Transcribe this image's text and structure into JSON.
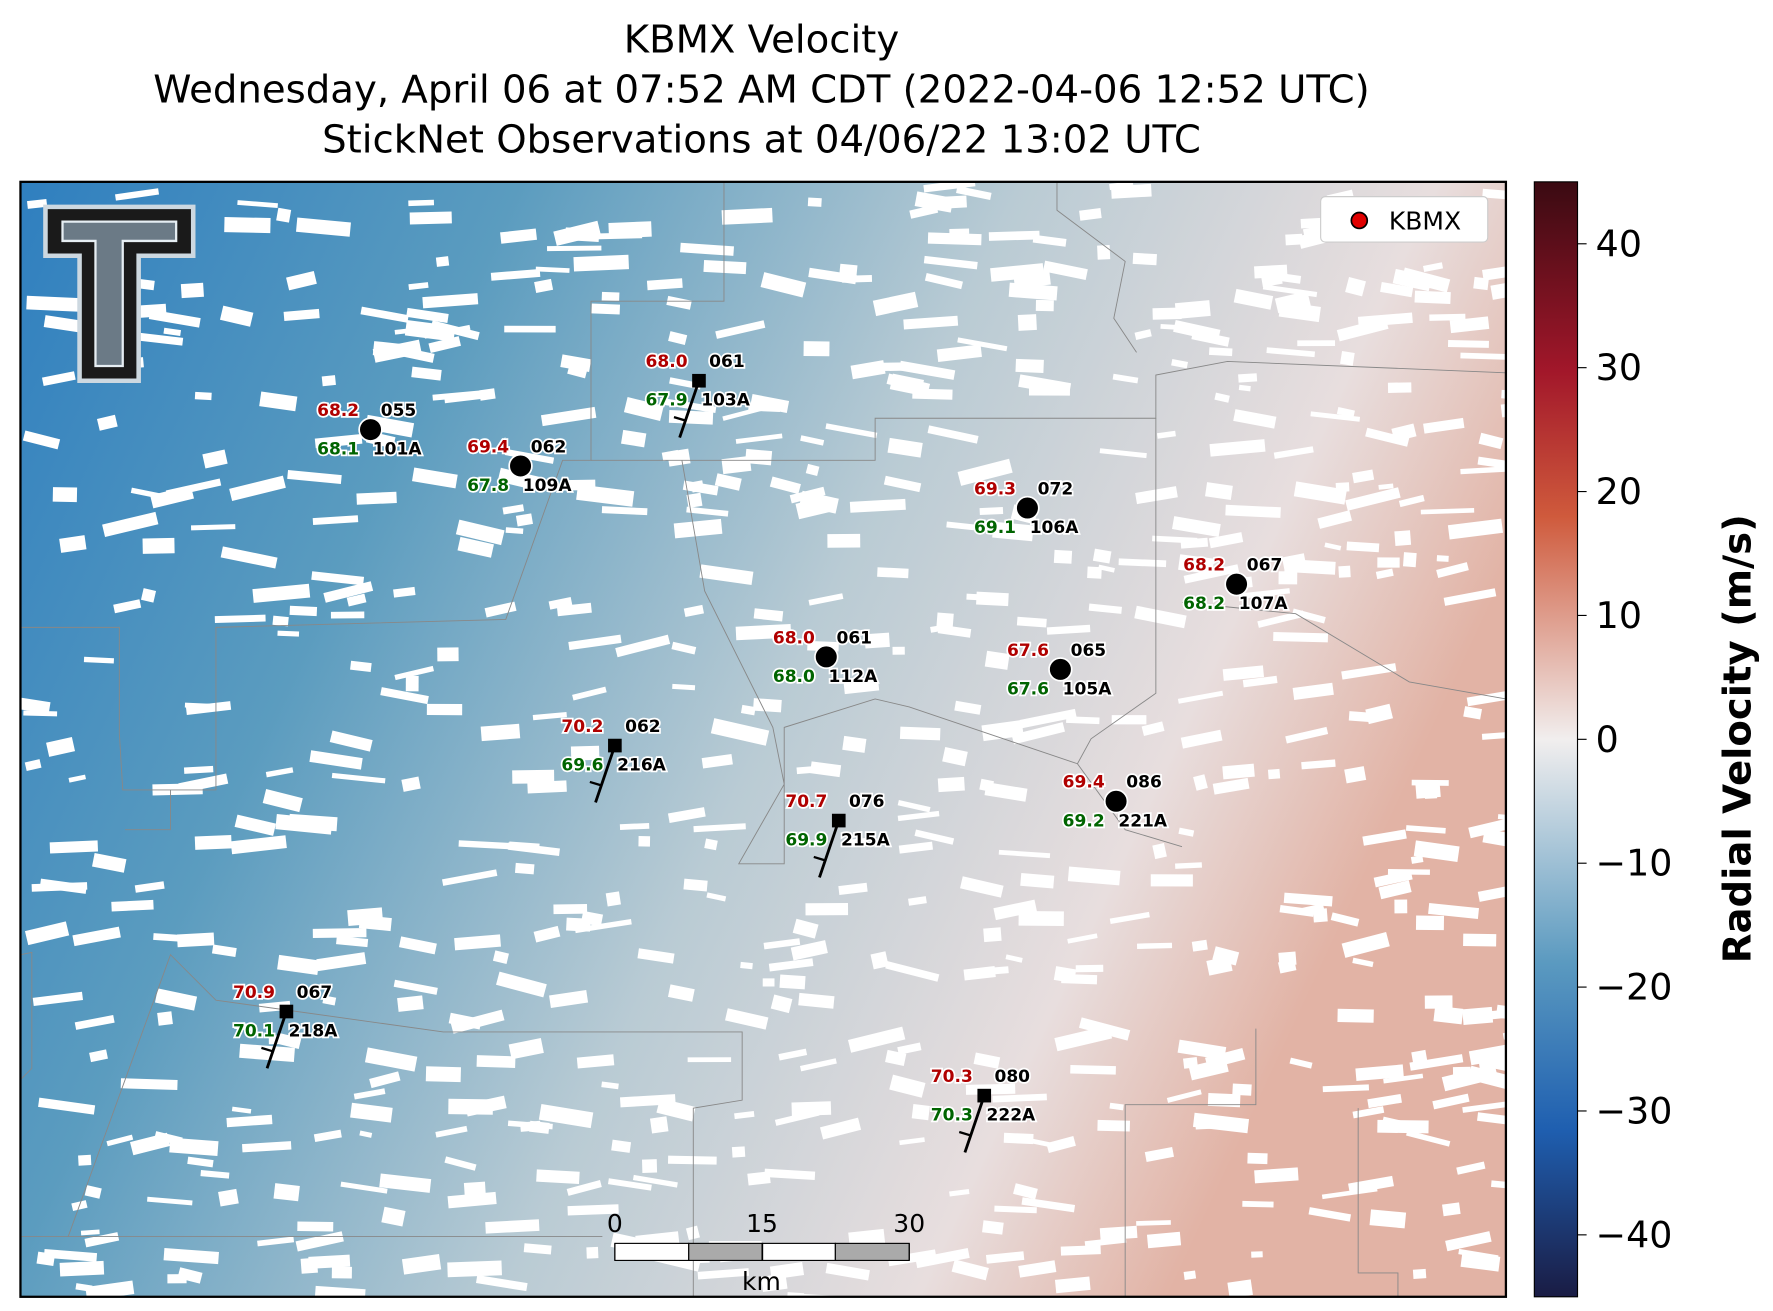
{
  "header": {
    "title_lines": [
      "KBMX Velocity",
      "Wednesday, April 06 at 07:52 AM CDT (2022-04-06 12:52 UTC)",
      "StickNet Observations at 04/06/22 13:02 UTC"
    ]
  },
  "legend": {
    "label": "KBMX",
    "color": "#e00000"
  },
  "stations": [
    {
      "temp": "68.2",
      "dew": "68.1",
      "pressure": "055",
      "id": "101A"
    },
    {
      "temp": "69.4",
      "dew": "67.8",
      "pressure": "062",
      "id": "109A"
    },
    {
      "temp": "68.0",
      "dew": "67.9",
      "pressure": "061",
      "id": "103A"
    },
    {
      "temp": "69.3",
      "dew": "69.1",
      "pressure": "072",
      "id": "106A"
    },
    {
      "temp": "68.2",
      "dew": "68.2",
      "pressure": "067",
      "id": "107A"
    },
    {
      "temp": "68.0",
      "dew": "68.0",
      "pressure": "061",
      "id": "112A"
    },
    {
      "temp": "67.6",
      "dew": "67.6",
      "pressure": "065",
      "id": "105A"
    },
    {
      "temp": "70.2",
      "dew": "69.6",
      "pressure": "062",
      "id": "216A"
    },
    {
      "temp": "69.4",
      "dew": "69.2",
      "pressure": "086",
      "id": "221A"
    },
    {
      "temp": "70.7",
      "dew": "69.9",
      "pressure": "076",
      "id": "215A"
    },
    {
      "temp": "70.9",
      "dew": "70.1",
      "pressure": "067",
      "id": "218A"
    },
    {
      "temp": "70.3",
      "dew": "70.3",
      "pressure": "080",
      "id": "222A"
    }
  ],
  "scale_bar": {
    "ticks": [
      0,
      15,
      30
    ],
    "unit": "km"
  },
  "colorbar": {
    "label": "Radial Velocity (m/s)",
    "lim": [
      -45,
      45
    ],
    "ticks": [
      {
        "value": -40,
        "label": "−40"
      },
      {
        "value": -30,
        "label": "−30"
      },
      {
        "value": -20,
        "label": "−20"
      },
      {
        "value": -10,
        "label": "−10"
      },
      0,
      10,
      20,
      30,
      40
    ]
  }
}
